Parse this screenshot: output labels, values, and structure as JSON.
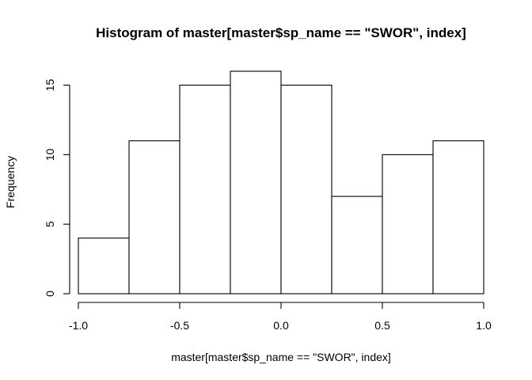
{
  "chart_data": {
    "type": "bar",
    "title": "Histogram of master[master$sp_name == \"SWOR\", index]",
    "xlabel": "master[master$sp_name == \"SWOR\", index]",
    "ylabel": "Frequency",
    "bins": [
      {
        "from": -1.0,
        "to": -0.75,
        "count": 4
      },
      {
        "from": -0.75,
        "to": -0.5,
        "count": 11
      },
      {
        "from": -0.5,
        "to": -0.25,
        "count": 15
      },
      {
        "from": -0.25,
        "to": 0.0,
        "count": 16
      },
      {
        "from": 0.0,
        "to": 0.25,
        "count": 15
      },
      {
        "from": 0.25,
        "to": 0.5,
        "count": 7
      },
      {
        "from": 0.5,
        "to": 0.75,
        "count": 10
      },
      {
        "from": 0.75,
        "to": 1.0,
        "count": 11
      }
    ],
    "xlim": [
      -1.0,
      1.0
    ],
    "ylim": [
      0,
      16
    ],
    "x_ticks": [
      -1.0,
      -0.5,
      0.0,
      0.5,
      1.0
    ],
    "x_tick_labels": [
      "-1.0",
      "-0.5",
      "0.0",
      "0.5",
      "1.0"
    ],
    "y_ticks": [
      0,
      5,
      10,
      15
    ],
    "y_tick_labels": [
      "0",
      "5",
      "10",
      "15"
    ],
    "grid": false,
    "legend": "none",
    "bar_fill": "#ffffff",
    "bar_stroke": "#000000"
  }
}
